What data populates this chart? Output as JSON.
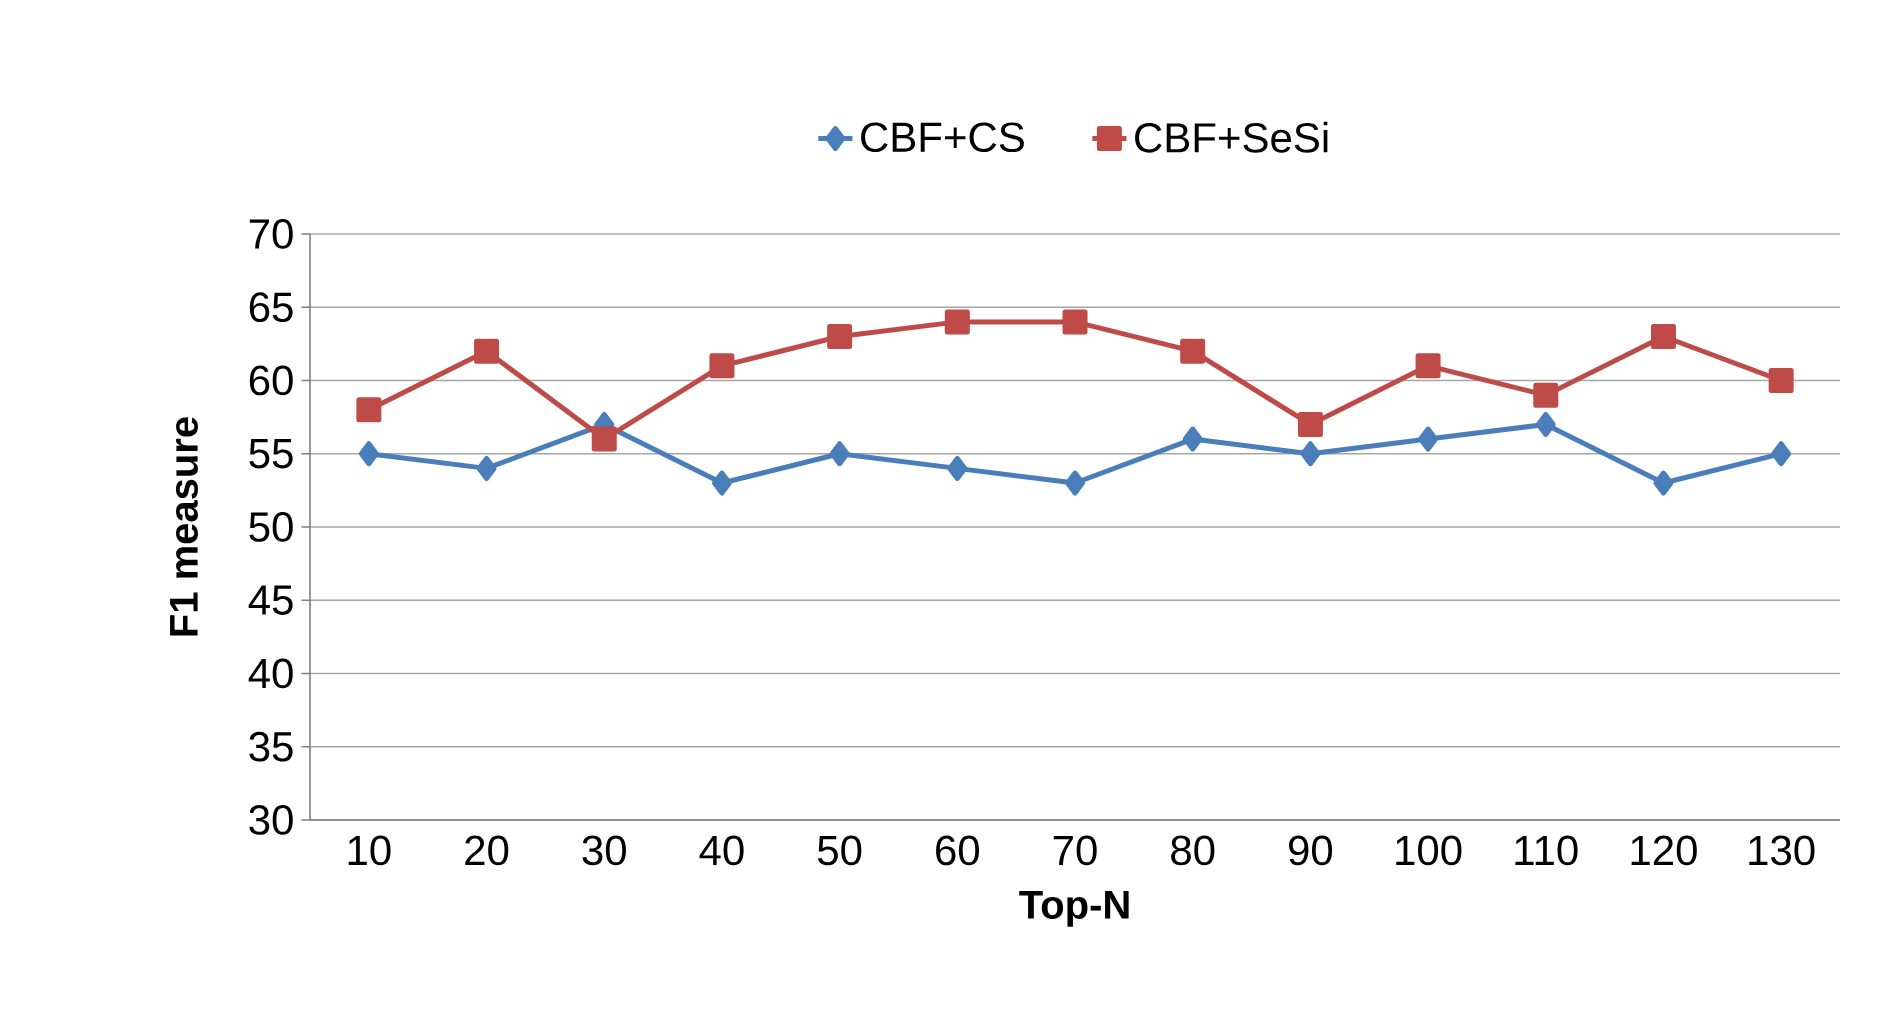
{
  "chart_data": {
    "type": "line",
    "xlabel": "Top-N",
    "ylabel": "F1 measure",
    "categories": [
      "10",
      "20",
      "30",
      "40",
      "50",
      "60",
      "70",
      "80",
      "90",
      "100",
      "110",
      "120",
      "130"
    ],
    "series": [
      {
        "name": "CBF+CS",
        "color": "#4a7ebb",
        "marker": "diamond",
        "values": [
          55,
          54,
          57,
          53,
          55,
          54,
          53,
          56,
          55,
          56,
          57,
          53,
          55
        ]
      },
      {
        "name": "CBF+SeSi",
        "color": "#be4b48",
        "marker": "square",
        "values": [
          58,
          62,
          56,
          61,
          63,
          64,
          64,
          62,
          57,
          61,
          59,
          63,
          60
        ]
      }
    ],
    "ylim": [
      30,
      70
    ],
    "yticks": [
      30,
      35,
      40,
      45,
      50,
      55,
      60,
      65,
      70
    ],
    "grid": "y",
    "legend": "top"
  }
}
